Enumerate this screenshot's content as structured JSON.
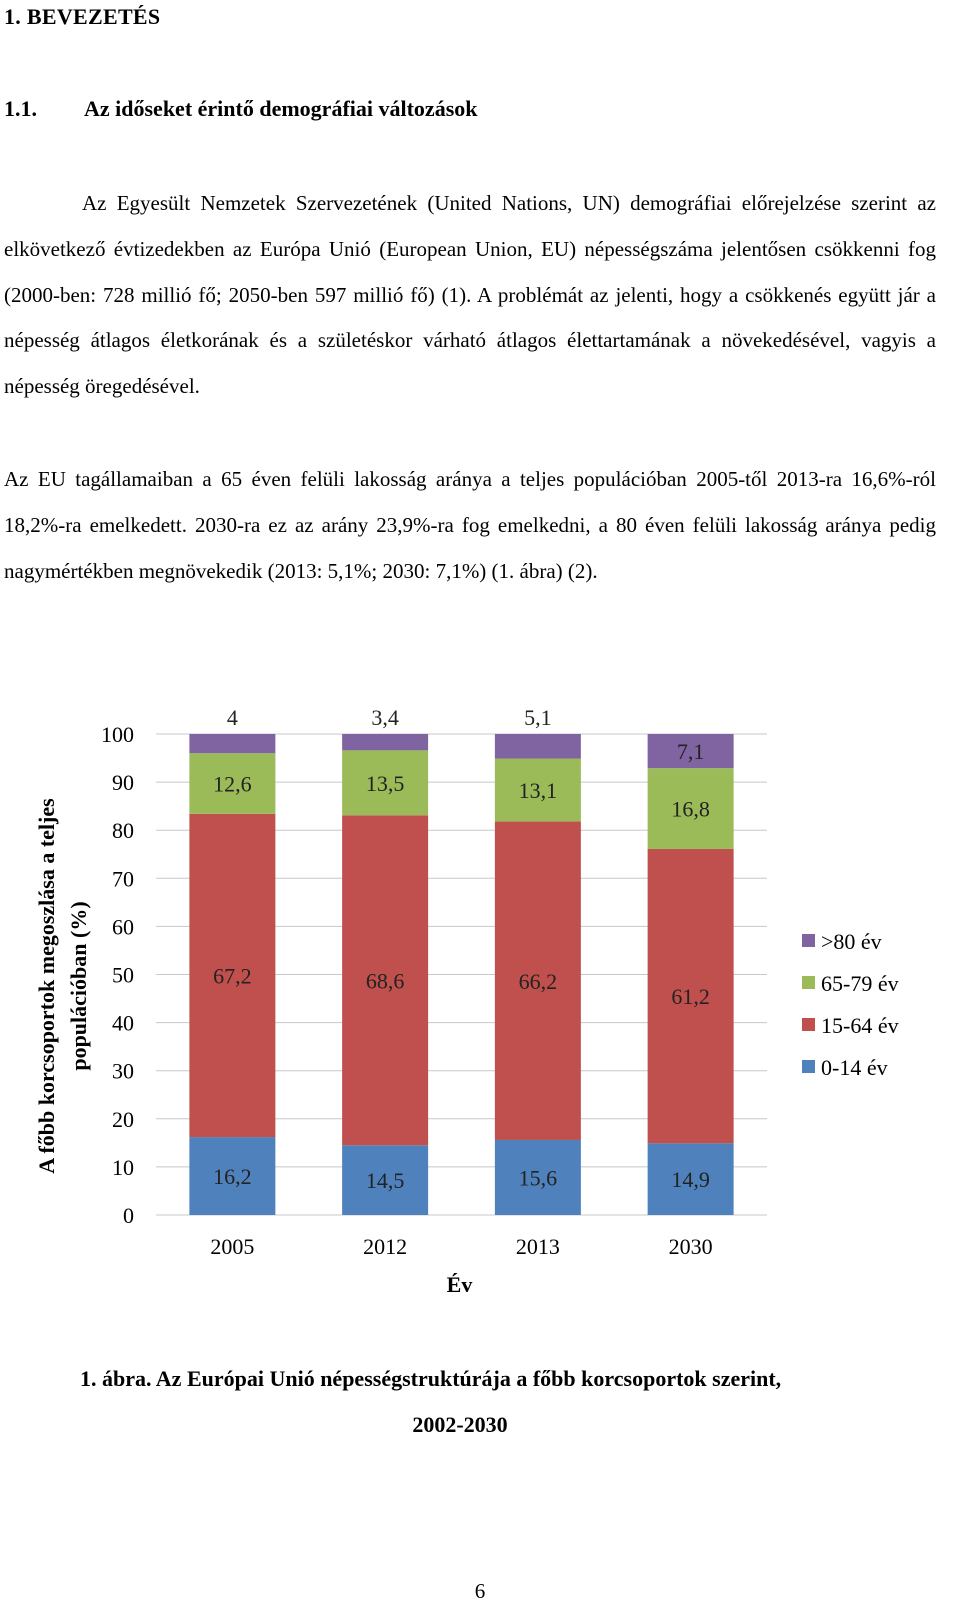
{
  "section": {
    "heading": "1. BEVEZETÉS"
  },
  "subsection": {
    "number": "1.1.",
    "title": "Az időseket érintő demográfiai változások"
  },
  "paragraphs": [
    "Az Egyesült Nemzetek Szervezetének (United Nations, UN) demográfiai előrejelzése szerint az elkövetkező évtizedekben az Európa Unió (European Union, EU) népességszáma jelentősen csökkenni fog (2000-ben: 728 millió fő; 2050-ben 597 millió fő) (1). A problémát az jelenti, hogy a csökkenés együtt jár a népesség átlagos életkorának és a születéskor várható átlagos élettartamának a növekedésével, vagyis a népesség öregedésével.",
    "Az EU tagállamaiban a 65 éven felüli lakosság aránya a teljes populációban 2005-től 2013-ra 16,6%-ról 18,2%-ra emelkedett. 2030-ra ez az arány 23,9%-ra fog emelkedni, a 80 éven felüli lakosság aránya pedig nagymértékben megnövekedik (2013: 5,1%; 2030: 7,1%) (1. ábra) (2)."
  ],
  "chart_data": {
    "type": "bar",
    "stacked": true,
    "categories": [
      "2005",
      "2012",
      "2013",
      "2030"
    ],
    "series": [
      {
        "name": "0-14 év",
        "color": "#4f81bd",
        "values": [
          16.2,
          14.5,
          15.6,
          14.9
        ],
        "labels": [
          "16,2",
          "14,5",
          "15,6",
          "14,9"
        ]
      },
      {
        "name": "15-64 év",
        "color": "#c0504d",
        "values": [
          67.2,
          68.6,
          66.2,
          61.2
        ],
        "labels": [
          "67,2",
          "68,6",
          "66,2",
          "61,2"
        ]
      },
      {
        "name": "65-79 év",
        "color": "#9bbb59",
        "values": [
          12.6,
          13.5,
          13.1,
          16.8
        ],
        "labels": [
          "12,6",
          "13,5",
          "13,1",
          "16,8"
        ]
      },
      {
        "name": ">80 év",
        "color": "#8064a2",
        "values": [
          4,
          3.4,
          5.1,
          7.1
        ],
        "labels": [
          "4",
          "3,4",
          "5,1",
          "7,1"
        ]
      }
    ],
    "xlabel": "Év",
    "ylabel_lines": [
      "A főbb korcsoportok megoszlása a teljes",
      "populációban (%)"
    ],
    "ylim": [
      0,
      100
    ],
    "yticks": [
      "0",
      "10",
      "20",
      "30",
      "40",
      "50",
      "60",
      "70",
      "80",
      "90",
      "100"
    ],
    "grid": true,
    "legend": "right",
    "legend_order": [
      ">80 év",
      "65-79 év",
      "15-64 év",
      "0-14 év"
    ]
  },
  "caption": {
    "line1": "1.   ábra. Az Európai Unió népességstruktúrája a főbb korcsoportok szerint,",
    "line2": "2002-2030"
  },
  "page_number": "6"
}
